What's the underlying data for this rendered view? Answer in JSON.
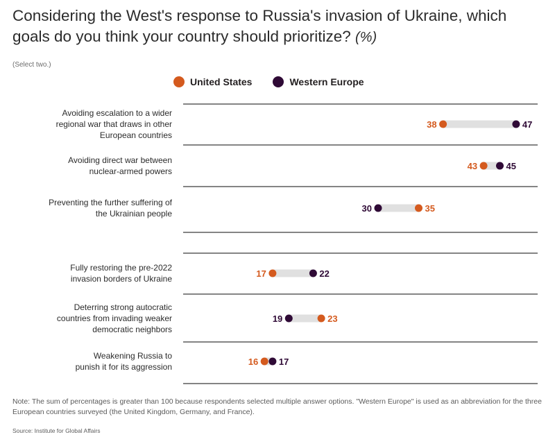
{
  "title": "Considering the West's response to Russia's invasion of Ukraine, which goals do you think your country should prioritize?",
  "title_unit": "(%)",
  "subtitle": "(Select two.)",
  "colors": {
    "us": "#d45a1e",
    "we": "#2f0a36",
    "connector": "#e0e0e0",
    "rule": "#3a3a3a"
  },
  "chart_data": {
    "type": "dot",
    "title": "Considering the West's response to Russia's invasion of Ukraine, which goals do you think your country should prioritize? (%)",
    "subtitle": "(Select two.)",
    "series": [
      {
        "name": "United States",
        "values": [
          38,
          43,
          35,
          17,
          23,
          16
        ]
      },
      {
        "name": "Western Europe",
        "values": [
          47,
          45,
          30,
          22,
          19,
          17
        ]
      }
    ],
    "categories": [
      "Avoiding escalation to a wider regional war that draws in other European countries",
      "Avoiding direct war between nuclear-armed powers",
      "Preventing the further suffering of the Ukrainian people",
      "Fully restoring the pre-2022 invasion borders of Ukraine",
      "Deterring strong autocratic countries from invading weaker democratic neighbors",
      "Weakening Russia to punish it for its aggression"
    ],
    "xlim": [
      0,
      55
    ],
    "legend": "top",
    "rows": [
      {
        "label_lines": [
          "Avoiding escalation to a wider",
          "regional war that draws in other",
          "European countries"
        ],
        "us": 38,
        "we": 47
      },
      {
        "label_lines": [
          "Avoiding direct war between",
          "nuclear-armed powers"
        ],
        "us": 43,
        "we": 45
      },
      {
        "label_lines": [
          "Preventing the further suffering of",
          "the Ukrainian people"
        ],
        "us": 35,
        "we": 30
      },
      {
        "label_lines": [
          "Fully restoring the pre-2022",
          "invasion borders of Ukraine"
        ],
        "us": 17,
        "we": 22
      },
      {
        "label_lines": [
          "Deterring strong autocratic",
          "countries from invading weaker",
          "democratic neighbors"
        ],
        "us": 23,
        "we": 19
      },
      {
        "label_lines": [
          "Weakening Russia to",
          "punish it for its aggression"
        ],
        "us": 16,
        "we": 17
      }
    ]
  },
  "footnote": "Note: The sum of percentages is greater than 100 because respondents selected multiple answer options. \"Western Europe\" is used as an abbreviation for the three European countries surveyed (the United Kingdom, Germany, and France).",
  "source": "Source: Institute for Global Affairs"
}
